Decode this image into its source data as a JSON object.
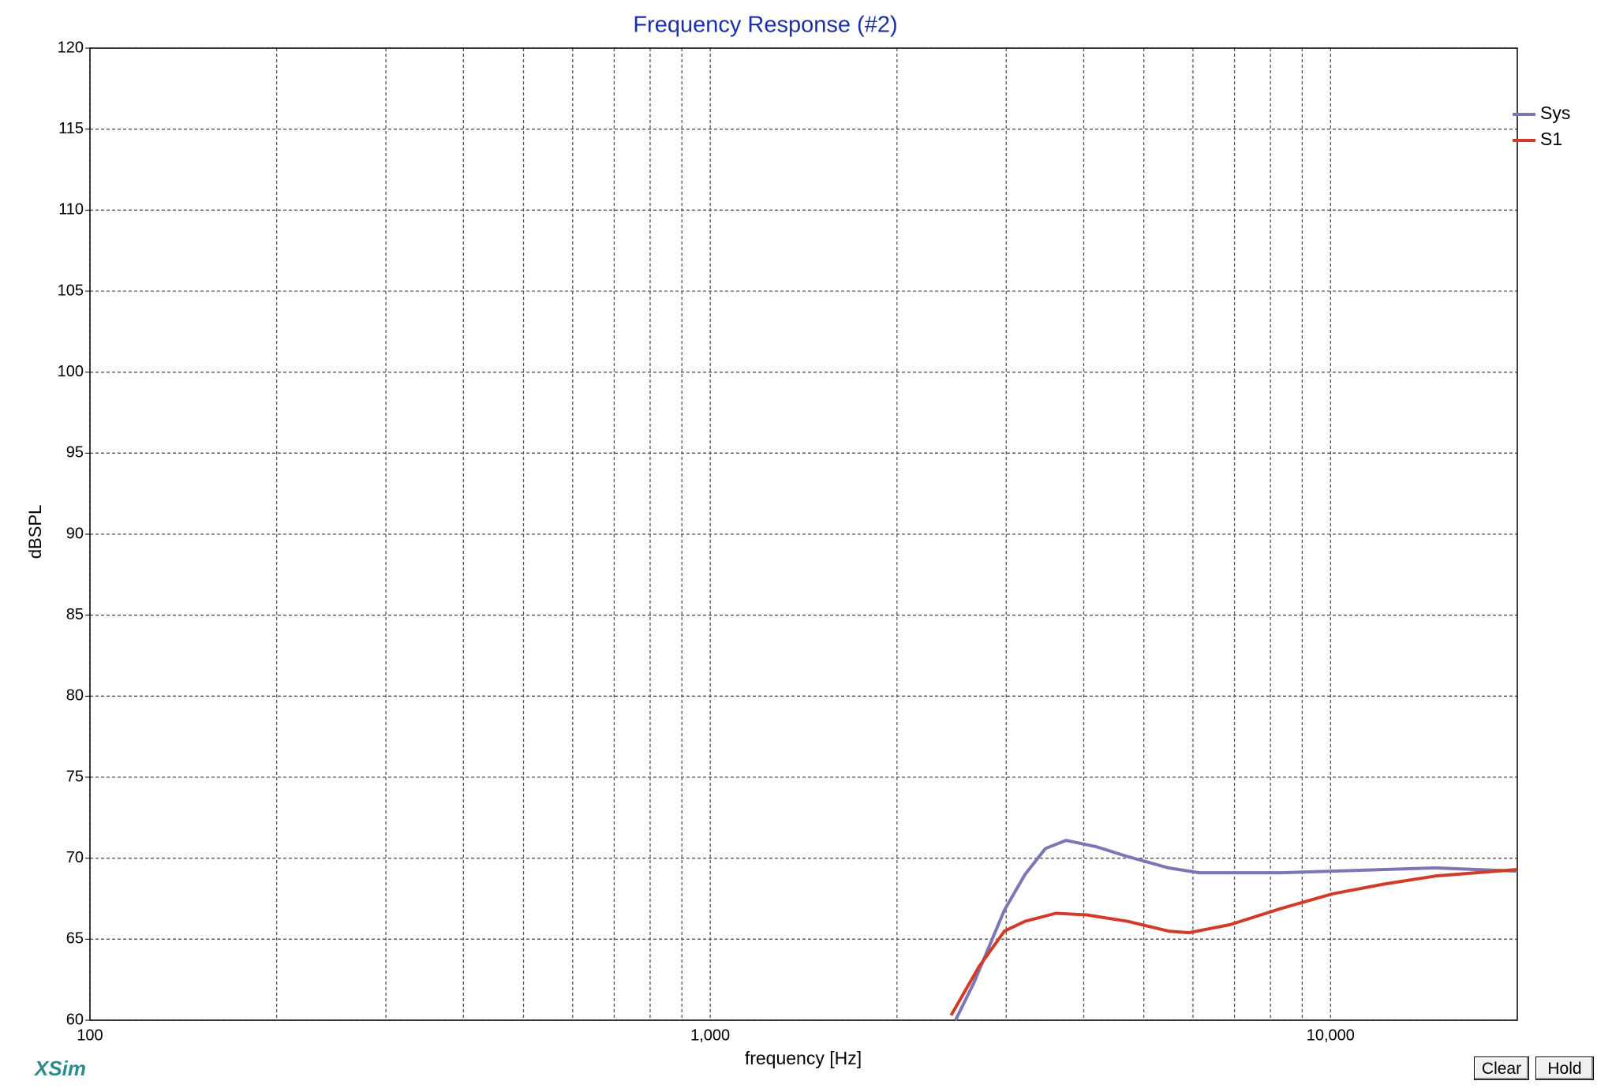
{
  "chart_data": {
    "type": "line",
    "title": "Frequency Response (#2)",
    "x_label": "frequency [Hz]",
    "y_label": "dBSPL",
    "x_log": true,
    "xlim": [
      100,
      20000
    ],
    "xticks": [
      100,
      {
        "value": 1000,
        "label": "1,000"
      },
      {
        "value": 10000,
        "label": "10,000"
      }
    ],
    "x_minor_grid": [
      200,
      300,
      400,
      500,
      600,
      700,
      800,
      900,
      2000,
      3000,
      4000,
      5000,
      6000,
      7000,
      8000,
      9000
    ],
    "ylim": [
      60,
      120
    ],
    "yticks": [
      60,
      65,
      70,
      75,
      80,
      85,
      90,
      95,
      100,
      105,
      110,
      115,
      120
    ],
    "grid": true,
    "legend": "right",
    "series": [
      {
        "name": "Sys",
        "color": "#7a78b4",
        "x": [
          2485,
          2660,
          2980,
          3217,
          3471,
          3746,
          4199,
          4707,
          5481,
          6143,
          8330,
          10077,
          14747,
          20000
        ],
        "values": [
          60.0,
          62.3,
          66.8,
          69.0,
          70.6,
          71.1,
          70.7,
          70.1,
          69.4,
          69.1,
          69.1,
          69.2,
          69.4,
          69.2
        ]
      },
      {
        "name": "S1",
        "color": "#d23a2a",
        "x": [
          2445,
          2711,
          2980,
          3217,
          3606,
          4043,
          4707,
          5481,
          5914,
          6887,
          8330,
          10077,
          12190,
          14747,
          20000
        ],
        "values": [
          60.3,
          63.3,
          65.5,
          66.1,
          66.6,
          66.5,
          66.1,
          65.5,
          65.4,
          65.9,
          66.9,
          67.8,
          68.4,
          68.9,
          69.3
        ]
      }
    ]
  },
  "app_name": "XSim",
  "buttons": [
    "Clear",
    "Hold"
  ]
}
